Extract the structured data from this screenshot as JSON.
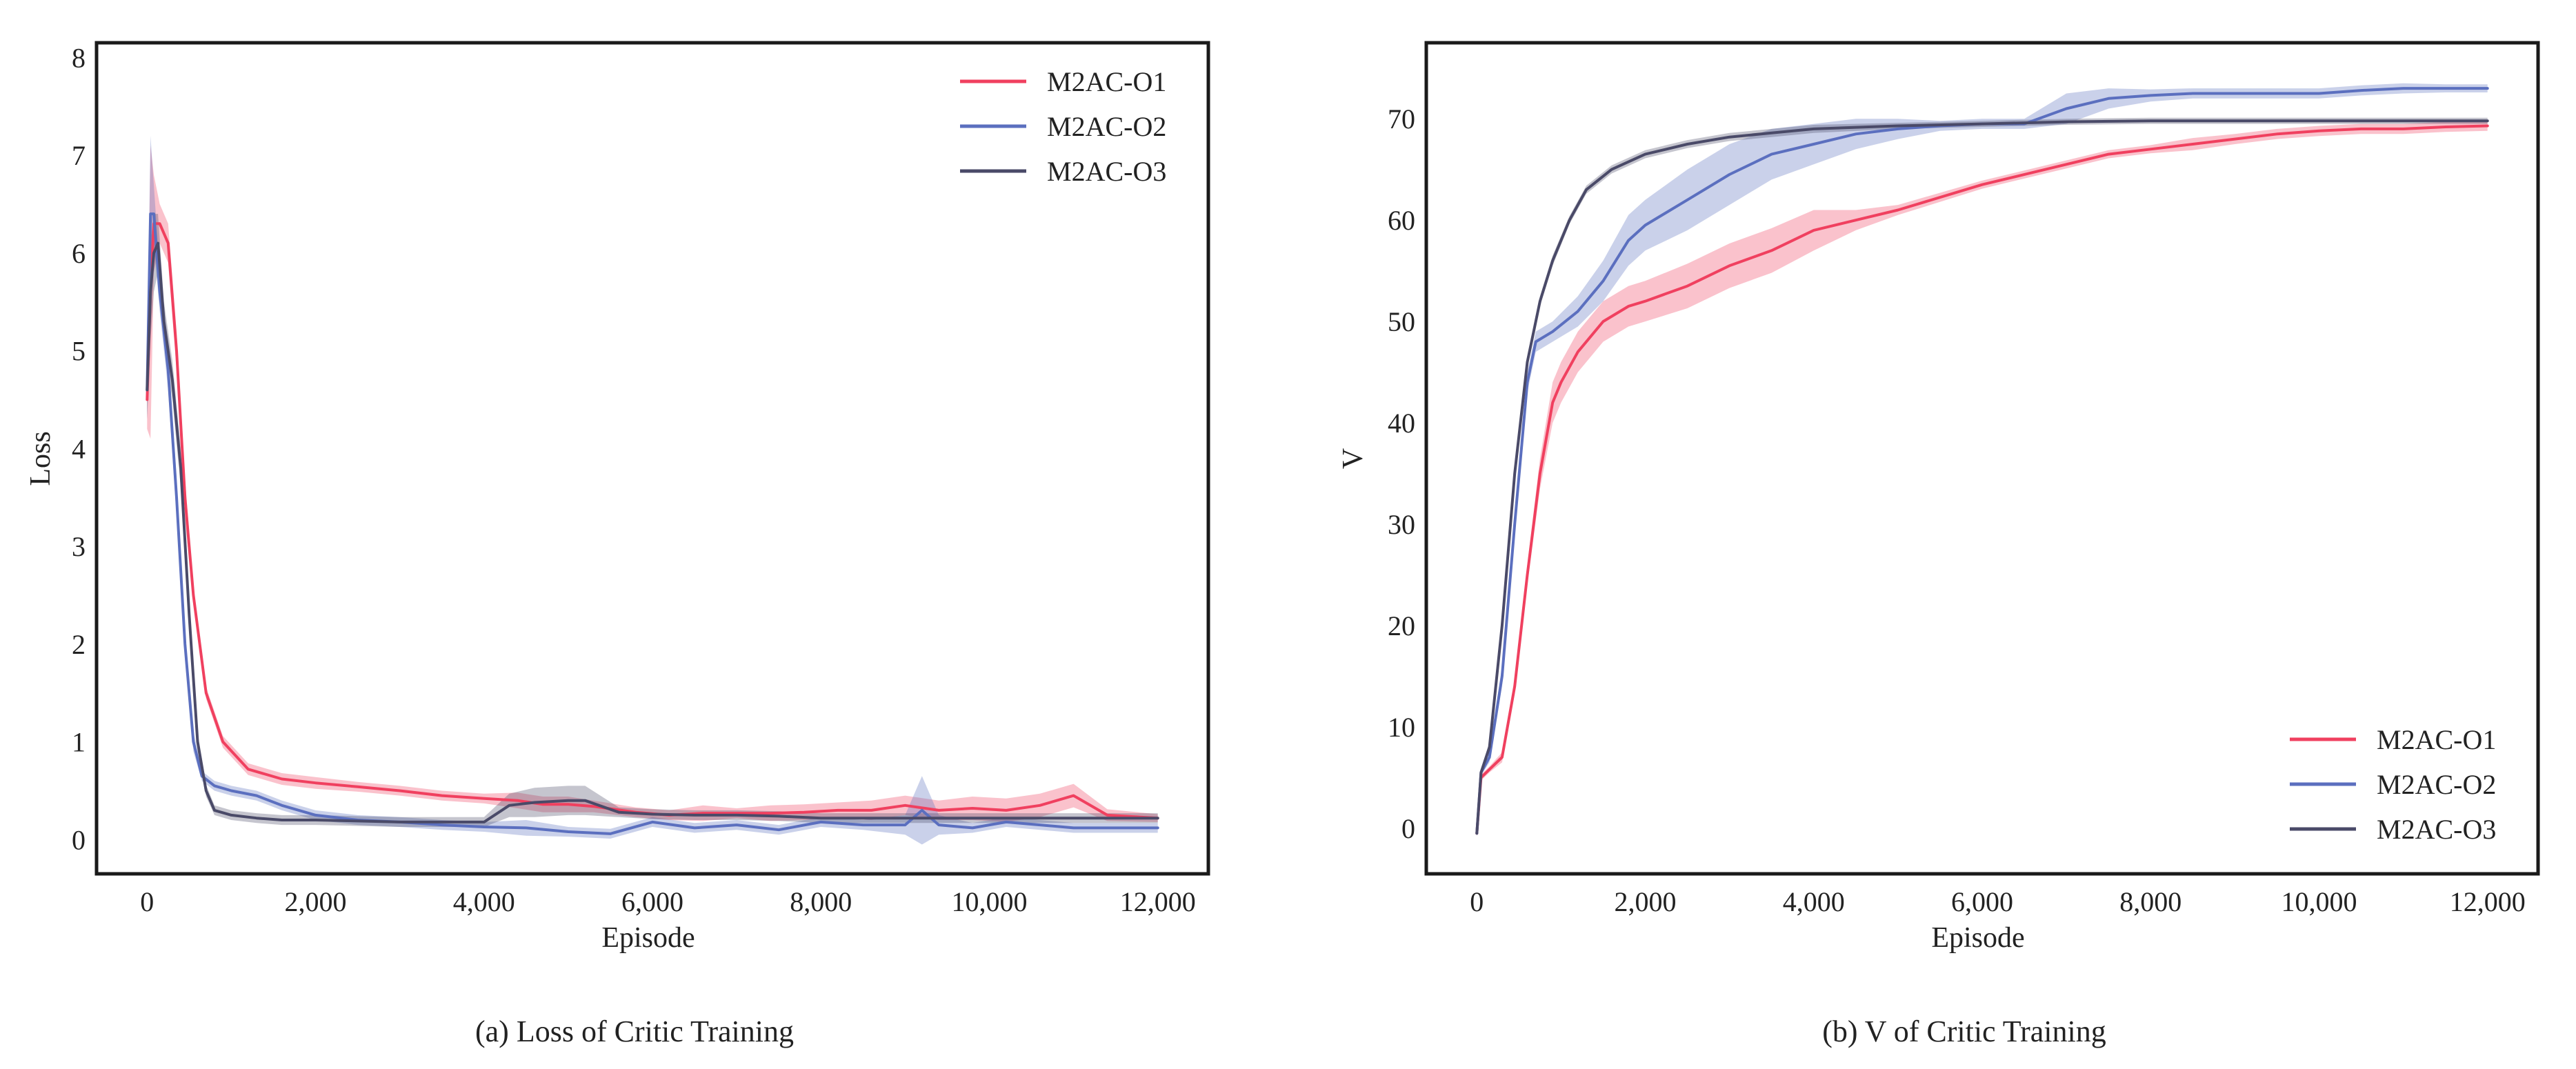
{
  "colors": {
    "s1": "#f0405f",
    "s2": "#5b6fbf",
    "s3": "#4a4a68",
    "frame": "#1a1a1a"
  },
  "chart_data": [
    {
      "type": "line",
      "caption": "(a) Loss of Critic Training",
      "xlabel": "Episode",
      "ylabel": "Loss",
      "xlim": [
        -600,
        12600
      ],
      "ylim": [
        -0.35,
        8.15
      ],
      "xticks": [
        0,
        2000,
        4000,
        6000,
        8000,
        10000,
        12000
      ],
      "xtick_labels": [
        "0",
        "2,000",
        "4,000",
        "6,000",
        "8,000",
        "10,000",
        "12,000"
      ],
      "yticks": [
        0,
        1,
        2,
        3,
        4,
        5,
        6,
        7,
        8
      ],
      "ytick_labels": [
        "0",
        "1",
        "2",
        "3",
        "4",
        "5",
        "6",
        "7",
        "8"
      ],
      "legend_position": "top-right",
      "series": [
        {
          "name": "M2AC-O1",
          "color": "#f0405f",
          "x": [
            0,
            40,
            80,
            150,
            250,
            350,
            450,
            550,
            700,
            900,
            1200,
            1600,
            2000,
            2500,
            3000,
            3500,
            4000,
            4400,
            4700,
            5000,
            5300,
            5800,
            6200,
            6600,
            7000,
            7400,
            7800,
            8200,
            8600,
            9000,
            9400,
            9800,
            10200,
            10600,
            11000,
            11400,
            12000
          ],
          "y": [
            4.5,
            5.6,
            6.3,
            6.3,
            6.1,
            5.0,
            3.5,
            2.5,
            1.5,
            1.0,
            0.72,
            0.62,
            0.58,
            0.54,
            0.5,
            0.45,
            0.42,
            0.4,
            0.36,
            0.36,
            0.34,
            0.28,
            0.25,
            0.27,
            0.27,
            0.27,
            0.28,
            0.3,
            0.3,
            0.35,
            0.3,
            0.32,
            0.3,
            0.35,
            0.45,
            0.25,
            0.22
          ],
          "band": [
            0.3,
            1.5,
            0.5,
            0.2,
            0.2,
            0.2,
            0.2,
            0.1,
            0.06,
            0.06,
            0.06,
            0.06,
            0.06,
            0.05,
            0.05,
            0.05,
            0.05,
            0.08,
            0.08,
            0.08,
            0.06,
            0.05,
            0.05,
            0.08,
            0.05,
            0.08,
            0.08,
            0.08,
            0.1,
            0.1,
            0.1,
            0.12,
            0.12,
            0.12,
            0.12,
            0.06,
            0.04
          ]
        },
        {
          "name": "M2AC-O2",
          "color": "#5b6fbf",
          "x": [
            0,
            40,
            80,
            150,
            250,
            350,
            450,
            550,
            650,
            800,
            1000,
            1300,
            1600,
            2000,
            2500,
            3000,
            3500,
            4000,
            4500,
            5000,
            5500,
            6000,
            6500,
            7000,
            7500,
            8000,
            8500,
            9000,
            9200,
            9400,
            9800,
            10200,
            10600,
            11000,
            11400,
            12000
          ],
          "y": [
            4.6,
            6.4,
            6.4,
            5.6,
            4.8,
            3.5,
            2.0,
            1.0,
            0.65,
            0.55,
            0.5,
            0.45,
            0.35,
            0.25,
            0.2,
            0.18,
            0.15,
            0.13,
            0.12,
            0.08,
            0.06,
            0.18,
            0.12,
            0.15,
            0.1,
            0.18,
            0.15,
            0.15,
            0.3,
            0.15,
            0.12,
            0.18,
            0.15,
            0.12,
            0.12,
            0.12
          ],
          "band": [
            0.3,
            0.8,
            0.3,
            0.2,
            0.2,
            0.2,
            0.15,
            0.1,
            0.05,
            0.05,
            0.05,
            0.05,
            0.05,
            0.05,
            0.05,
            0.05,
            0.05,
            0.05,
            0.08,
            0.05,
            0.05,
            0.05,
            0.05,
            0.05,
            0.05,
            0.05,
            0.05,
            0.1,
            0.35,
            0.1,
            0.05,
            0.05,
            0.05,
            0.05,
            0.05,
            0.05
          ]
        },
        {
          "name": "M2AC-O3",
          "color": "#4a4a68",
          "x": [
            0,
            40,
            80,
            130,
            200,
            300,
            400,
            500,
            600,
            700,
            800,
            1000,
            1300,
            1600,
            2000,
            2500,
            3000,
            3500,
            4000,
            4300,
            4600,
            5000,
            5200,
            5600,
            6000,
            6500,
            7000,
            7500,
            8000,
            8500,
            9000,
            9500,
            10000,
            10500,
            11000,
            11500,
            12000
          ],
          "y": [
            4.6,
            5.6,
            6.0,
            6.1,
            5.3,
            4.7,
            3.8,
            2.3,
            1.0,
            0.5,
            0.3,
            0.25,
            0.22,
            0.2,
            0.2,
            0.19,
            0.18,
            0.18,
            0.18,
            0.35,
            0.38,
            0.4,
            0.4,
            0.28,
            0.26,
            0.25,
            0.25,
            0.24,
            0.22,
            0.22,
            0.22,
            0.22,
            0.22,
            0.22,
            0.22,
            0.22,
            0.22
          ],
          "band": [
            0.3,
            0.5,
            0.4,
            0.3,
            0.2,
            0.2,
            0.2,
            0.15,
            0.1,
            0.06,
            0.05,
            0.05,
            0.05,
            0.05,
            0.05,
            0.05,
            0.05,
            0.05,
            0.05,
            0.12,
            0.15,
            0.15,
            0.15,
            0.05,
            0.05,
            0.05,
            0.05,
            0.05,
            0.05,
            0.05,
            0.05,
            0.05,
            0.05,
            0.05,
            0.05,
            0.05,
            0.05
          ]
        }
      ]
    },
    {
      "type": "line",
      "caption": "(b) V of Critic Training",
      "xlabel": "Episode",
      "ylabel": "V",
      "xlim": [
        -600,
        12600
      ],
      "ylim": [
        -4.5,
        77.5
      ],
      "xticks": [
        0,
        2000,
        4000,
        6000,
        8000,
        10000,
        12000
      ],
      "xtick_labels": [
        "0",
        "2,000",
        "4,000",
        "6,000",
        "8,000",
        "10,000",
        "12,000"
      ],
      "yticks": [
        0,
        10,
        20,
        30,
        40,
        50,
        60,
        70
      ],
      "ytick_labels": [
        "0",
        "10",
        "20",
        "30",
        "40",
        "50",
        "60",
        "70"
      ],
      "legend_position": "bottom-right",
      "series": [
        {
          "name": "M2AC-O1",
          "color": "#f0405f",
          "x": [
            0,
            50,
            150,
            300,
            450,
            600,
            750,
            900,
            1000,
            1200,
            1500,
            1800,
            2000,
            2500,
            3000,
            3500,
            4000,
            4500,
            5000,
            6000,
            7000,
            7500,
            8000,
            8500,
            9000,
            9500,
            10000,
            10500,
            11000,
            11500,
            12000
          ],
          "y": [
            -0.5,
            5,
            5.8,
            7,
            14,
            25,
            35,
            42,
            44,
            47,
            50,
            51.5,
            52,
            53.5,
            55.5,
            57,
            59,
            60,
            61,
            63.5,
            65.5,
            66.5,
            67,
            67.5,
            68,
            68.5,
            68.8,
            69,
            69,
            69.2,
            69.3
          ],
          "band": [
            0.3,
            0.3,
            0.3,
            0.5,
            0.8,
            1,
            1.5,
            2,
            2,
            2,
            2,
            2,
            2,
            2.2,
            2.2,
            2.2,
            2,
            1,
            0.5,
            0.4,
            0.4,
            0.4,
            0.4,
            0.6,
            0.5,
            0.5,
            0.5,
            0.5,
            0.5,
            0.5,
            0.5
          ]
        },
        {
          "name": "M2AC-O2",
          "color": "#5b6fbf",
          "x": [
            0,
            50,
            150,
            300,
            450,
            600,
            700,
            900,
            1200,
            1500,
            1800,
            2000,
            2500,
            3000,
            3500,
            4000,
            4500,
            5000,
            5500,
            6000,
            6500,
            7000,
            7500,
            8000,
            8500,
            9000,
            9500,
            10000,
            10500,
            11000,
            11500,
            12000
          ],
          "y": [
            -0.5,
            5.5,
            7,
            15,
            30,
            44,
            48,
            49,
            51,
            54,
            58,
            59.5,
            62,
            64.5,
            66.5,
            67.5,
            68.5,
            69,
            69.3,
            69.5,
            69.5,
            71,
            72,
            72.3,
            72.5,
            72.5,
            72.5,
            72.5,
            72.8,
            73,
            73,
            73
          ],
          "band": [
            0.3,
            0.3,
            0.5,
            1,
            1,
            1,
            1,
            1,
            1.5,
            2,
            2.5,
            2.5,
            3,
            3,
            2.5,
            2,
            1.5,
            1,
            0.5,
            0.5,
            0.5,
            1.5,
            1,
            0.6,
            0.5,
            0.5,
            0.5,
            0.5,
            0.5,
            0.5,
            0.4,
            0.4
          ]
        },
        {
          "name": "M2AC-O3",
          "color": "#4a4a68",
          "x": [
            0,
            50,
            150,
            300,
            450,
            600,
            750,
            900,
            1100,
            1300,
            1600,
            2000,
            2500,
            3000,
            3500,
            4000,
            5000,
            6000,
            7000,
            8000,
            9000,
            10000,
            11000,
            12000
          ],
          "y": [
            -0.5,
            5.5,
            8,
            20,
            35,
            46,
            52,
            56,
            60,
            63,
            65,
            66.5,
            67.5,
            68.2,
            68.6,
            69,
            69.3,
            69.5,
            69.7,
            69.8,
            69.8,
            69.8,
            69.8,
            69.8
          ],
          "band": [
            0.3,
            0.3,
            0.5,
            0.8,
            0.8,
            0.6,
            0.5,
            0.5,
            0.4,
            0.4,
            0.4,
            0.4,
            0.4,
            0.4,
            0.4,
            0.4,
            0.3,
            0.3,
            0.3,
            0.3,
            0.3,
            0.3,
            0.3,
            0.3
          ]
        }
      ]
    }
  ]
}
